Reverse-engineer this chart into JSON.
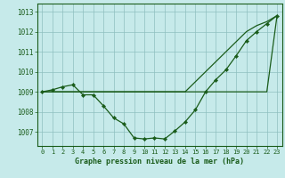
{
  "title": "Graphe pression niveau de la mer (hPa)",
  "background_color": "#c6eaea",
  "grid_color": "#8fbfbf",
  "line_color": "#1a5c1a",
  "x_ticks": [
    0,
    1,
    2,
    3,
    4,
    5,
    6,
    7,
    8,
    9,
    10,
    11,
    12,
    13,
    14,
    15,
    16,
    17,
    18,
    19,
    20,
    21,
    22,
    23
  ],
  "ylim": [
    1006.3,
    1013.4
  ],
  "yticks": [
    1007,
    1008,
    1009,
    1010,
    1011,
    1012,
    1013
  ],
  "line1_y": [
    1009.0,
    1009.0,
    1009.0,
    1009.0,
    1009.0,
    1009.0,
    1009.0,
    1009.0,
    1009.0,
    1009.0,
    1009.0,
    1009.0,
    1009.0,
    1009.0,
    1009.0,
    1009.0,
    1009.0,
    1009.0,
    1009.0,
    1009.0,
    1009.0,
    1009.0,
    1009.0,
    1012.8
  ],
  "line2_y": [
    1009.0,
    1009.0,
    1009.0,
    1009.0,
    1009.0,
    1009.0,
    1009.0,
    1009.0,
    1009.0,
    1009.0,
    1009.0,
    1009.0,
    1009.0,
    1009.0,
    1009.0,
    1009.5,
    1010.0,
    1010.5,
    1011.0,
    1011.5,
    1012.0,
    1012.3,
    1012.5,
    1012.8
  ],
  "line3_y": [
    1009.0,
    1009.1,
    1009.25,
    1009.35,
    1008.85,
    1008.85,
    1008.3,
    1007.7,
    1007.4,
    1006.7,
    1006.65,
    1006.7,
    1006.65,
    1007.05,
    1007.5,
    1008.1,
    1009.0,
    1009.6,
    1010.1,
    1010.8,
    1011.55,
    1012.0,
    1012.4,
    1012.8
  ]
}
